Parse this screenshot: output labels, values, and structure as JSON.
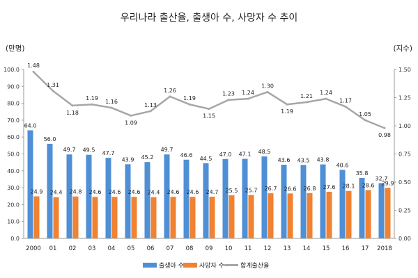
{
  "chart_data": {
    "type": "bar",
    "title": "우리나라 출산율, 출생아 수, 사망자 수 추이",
    "y_left_unit": "(만명)",
    "y_right_unit": "(지수)",
    "categories": [
      "2000",
      "01",
      "02",
      "03",
      "04",
      "05",
      "06",
      "07",
      "08",
      "09",
      "10",
      "11",
      "12",
      "13",
      "14",
      "15",
      "16",
      "17",
      "2018"
    ],
    "y_left_ticks": [
      "0.0",
      "10.0",
      "20.0",
      "30.0",
      "40.0",
      "50.0",
      "60.0",
      "70.0",
      "80.0",
      "90.0",
      "100.0"
    ],
    "y_right_ticks": [
      "0.00",
      "0.25",
      "0.50",
      "0.75",
      "1.00",
      "1.25",
      "1.50"
    ],
    "ylim_left": [
      0,
      100
    ],
    "ylim_right": [
      0,
      1.5
    ],
    "grid": false,
    "legend_position": "bottom",
    "series": [
      {
        "name": "출생아 수",
        "type": "bar",
        "axis": "left",
        "color": "#4f8fd6",
        "values": [
          64.0,
          56.0,
          49.7,
          49.5,
          47.7,
          43.9,
          45.2,
          49.7,
          46.6,
          44.5,
          47.0,
          47.1,
          48.5,
          43.6,
          43.5,
          43.8,
          40.6,
          35.8,
          32.7
        ],
        "labels": [
          "64.0",
          "56.0",
          "49.7",
          "49.5",
          "47.7",
          "43.9",
          "45.2",
          "49.7",
          "46.6",
          "44.5",
          "47.0",
          "47.1",
          "48.5",
          "43.6",
          "43.5",
          "43.8",
          "40.6",
          "35.8",
          "32.7"
        ]
      },
      {
        "name": "사망자 수",
        "type": "bar",
        "axis": "left",
        "color": "#f08232",
        "values": [
          24.9,
          24.4,
          24.8,
          24.6,
          24.6,
          24.6,
          24.4,
          24.6,
          24.6,
          24.7,
          25.5,
          25.7,
          26.7,
          26.6,
          26.8,
          27.6,
          28.1,
          28.6,
          29.9
        ],
        "labels": [
          "24.9",
          "24.4",
          "24.8",
          "24.6",
          "24.6",
          "24.6",
          "24.4",
          "24.6",
          "24.6",
          "24.7",
          "25.5",
          "25.7",
          "26.7",
          "26.6",
          "26.8",
          "27.6",
          "28.1",
          "28.6",
          "29.9"
        ]
      },
      {
        "name": "합계출산율",
        "type": "line",
        "axis": "right",
        "color": "#a6a6a6",
        "values": [
          1.48,
          1.31,
          1.18,
          1.19,
          1.16,
          1.09,
          1.13,
          1.26,
          1.19,
          1.15,
          1.23,
          1.24,
          1.3,
          1.19,
          1.21,
          1.24,
          1.17,
          1.05,
          0.98
        ],
        "labels": [
          "1.48",
          "1.31",
          "1.18",
          "1.19",
          "1.16",
          "1.09",
          "1.13",
          "1.26",
          "1.19",
          "1.15",
          "1.23",
          "1.24",
          "1.30",
          "1.19",
          "1.21",
          "1.24",
          "1.17",
          "1.05",
          "0.98"
        ]
      }
    ]
  }
}
